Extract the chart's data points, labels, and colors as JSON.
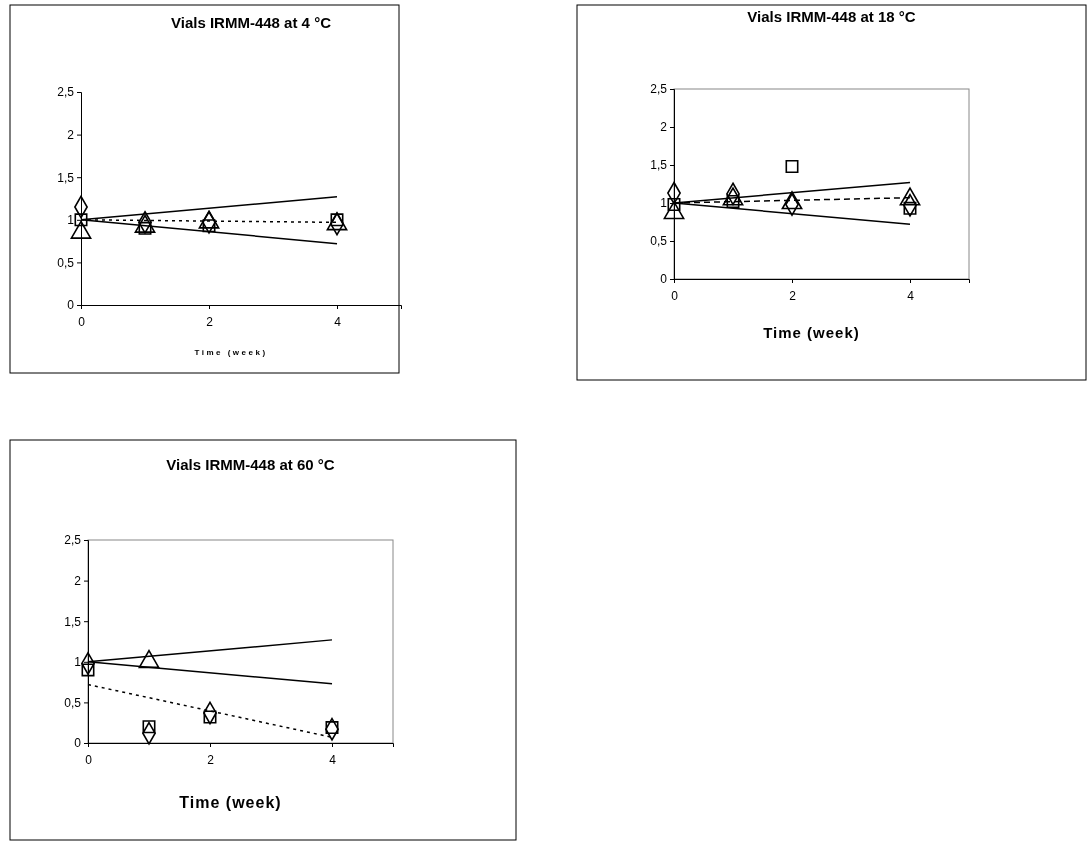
{
  "chart_data": [
    {
      "type": "scatter",
      "title": "Vials IRMM-448 at 4 °C",
      "xlabel": "Time (week)",
      "xlim": [
        0,
        5
      ],
      "xticks": [
        0,
        2,
        4
      ],
      "ylim": [
        0,
        2.5
      ],
      "yticks": [
        0,
        {
          "value": 0.5,
          "label": "0,5"
        },
        1,
        {
          "value": 1.5,
          "label": "1,5"
        },
        2,
        {
          "value": 2.5,
          "label": "2,5"
        }
      ],
      "grid": false,
      "series": [
        {
          "type": "line",
          "color": "#000000",
          "x": [
            0,
            4
          ],
          "values": [
            1,
            1.27
          ],
          "line_style": "solid",
          "marker": "none"
        },
        {
          "type": "line",
          "color": "#000000",
          "x": [
            0,
            4
          ],
          "values": [
            1,
            0.72
          ],
          "line_style": "solid",
          "marker": "none"
        },
        {
          "type": "line",
          "color": "#000000",
          "x": [
            0,
            4
          ],
          "values": [
            1,
            0.97
          ],
          "line_style": "dotted",
          "marker": "none"
        },
        {
          "color": "#000000",
          "marker": "diamond",
          "x": [
            0,
            1,
            2,
            4
          ],
          "values": [
            1.15,
            0.97,
            0.97,
            0.95
          ]
        },
        {
          "color": "#000000",
          "marker": "square",
          "x": [
            0,
            1,
            2,
            4
          ],
          "values": [
            1.0,
            0.9,
            0.93,
            1.0
          ]
        },
        {
          "color": "#000000",
          "marker": "triangle",
          "x": [
            0,
            1,
            2,
            4
          ],
          "values": [
            0.85,
            0.92,
            0.97,
            0.95
          ]
        }
      ]
    },
    {
      "type": "scatter",
      "title": "Vials IRMM-448 at 18 °C",
      "xlabel": "Time (week)",
      "xlim": [
        0,
        5
      ],
      "xticks": [
        0,
        2,
        4
      ],
      "ylim": [
        0,
        2.5
      ],
      "yticks": [
        0,
        {
          "value": 0.5,
          "label": "0,5"
        },
        1,
        {
          "value": 1.5,
          "label": "1,5"
        },
        2,
        {
          "value": 2.5,
          "label": "2,5"
        }
      ],
      "grid": false,
      "series": [
        {
          "type": "line",
          "color": "#000000",
          "x": [
            0,
            4
          ],
          "values": [
            1,
            1.27
          ],
          "line_style": "solid",
          "marker": "none"
        },
        {
          "type": "line",
          "color": "#000000",
          "x": [
            0,
            4
          ],
          "values": [
            1,
            0.72
          ],
          "line_style": "solid",
          "marker": "none"
        },
        {
          "type": "line",
          "color": "#000000",
          "x": [
            0,
            4
          ],
          "values": [
            1,
            1.07
          ],
          "line_style": "dashed",
          "marker": "none"
        },
        {
          "color": "#000000",
          "marker": "diamond",
          "x": [
            0,
            1,
            2,
            4
          ],
          "values": [
            1.13,
            1.12,
            0.98,
            0.97
          ]
        },
        {
          "color": "#000000",
          "marker": "square",
          "x": [
            0,
            1,
            2,
            4
          ],
          "values": [
            0.98,
            1.02,
            1.48,
            0.93
          ]
        },
        {
          "color": "#000000",
          "marker": "triangle",
          "x": [
            0,
            1,
            2,
            4
          ],
          "values": [
            0.87,
            1.05,
            1.0,
            1.05
          ]
        }
      ]
    },
    {
      "type": "scatter",
      "title": "Vials IRMM-448 at 60 °C",
      "xlabel": "Time (week)",
      "xlim": [
        0,
        5
      ],
      "xticks": [
        0,
        2,
        4
      ],
      "ylim": [
        0,
        2.5
      ],
      "yticks": [
        0,
        {
          "value": 0.5,
          "label": "0,5"
        },
        1,
        {
          "value": 1.5,
          "label": "1,5"
        },
        2,
        {
          "value": 2.5,
          "label": "2,5"
        }
      ],
      "grid": false,
      "series": [
        {
          "type": "line",
          "color": "#000000",
          "x": [
            0,
            4
          ],
          "values": [
            1,
            1.27
          ],
          "line_style": "solid",
          "marker": "none"
        },
        {
          "type": "line",
          "color": "#000000",
          "x": [
            0,
            4
          ],
          "values": [
            1,
            0.73
          ],
          "line_style": "solid",
          "marker": "none"
        },
        {
          "type": "line",
          "color": "#000000",
          "x": [
            0,
            4
          ],
          "values": [
            0.72,
            0.07
          ],
          "line_style": "dotted",
          "marker": "none"
        },
        {
          "color": "#000000",
          "marker": "diamond",
          "x": [
            0,
            1,
            2,
            4
          ],
          "values": [
            0.98,
            0.12,
            0.37,
            0.17
          ]
        },
        {
          "color": "#000000",
          "marker": "square",
          "x": [
            0,
            1,
            2,
            4
          ],
          "values": [
            0.9,
            0.2,
            0.32,
            0.19
          ]
        },
        {
          "color": "#000000",
          "marker": "triangle",
          "x": [
            1
          ],
          "values": [
            1.0
          ]
        }
      ]
    }
  ]
}
